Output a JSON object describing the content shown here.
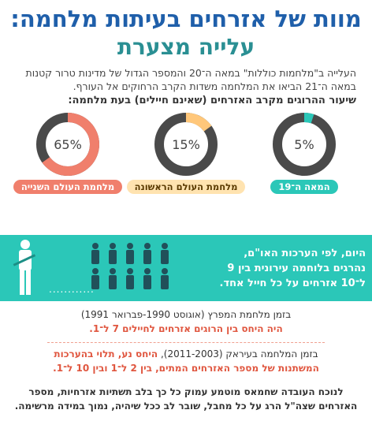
{
  "title": {
    "line1": "מוות של אזרחים בעיתות מלחמה:",
    "line2": "עלייה מצערת"
  },
  "intro": "העלייה ב\"מלחמות כוללות\" במאה ה־20 והמספר הגדול של מדינות טרור קטנות במאה ה־21 הביאו את המלחמה משדות הקרב הרחוקים אל העורף.",
  "section_heading": "שיעור ההרוגים מקרב האזרחים (שאינם חיילים) בעת מלחמה:",
  "chart_data": {
    "type": "pie",
    "categories": [
      "המאה ה־19",
      "מלחמת העולם הראשונה",
      "מלחמת העולם השנייה"
    ],
    "values": [
      5,
      15,
      65
    ],
    "labels": [
      "5%",
      "15%",
      "65%"
    ],
    "colors": [
      "#2bc7b8",
      "#ffc77a",
      "#f07f6c"
    ],
    "track_color": "#4a4a4a"
  },
  "pill_colors": {
    "bg": [
      "#2bc7b8",
      "#ffe3b0",
      "#f07f6c"
    ],
    "fg": [
      "#ffffff",
      "#5a3a00",
      "#ffffff"
    ]
  },
  "banner": {
    "text": "היום, לפי הערכות האו\"ם, נהרגים בלוחמה עירונית בין 9 ל־10 אזרחים על כל חייל אחד.",
    "dots": "............",
    "civilian_figures": 10,
    "soldier_figures": 1
  },
  "gulf": {
    "line1": "בזמן מלחמת המפרץ (אוגוסט 1990-פברואר 1991)",
    "line2": "היה היחס בין הרוגים אזרחים לחיילים 7 ל־1."
  },
  "iraq": {
    "line1_plain": "בזמן המלחמה בעיראק (2011-2003), ",
    "line1_red": "היחס נע, תלוי בהערכות",
    "line2": "המשתנות של מספר האזרחים המתים, בין 2 ל־1 ובין 10 ל־1."
  },
  "footer": "לנוכח העובדה שחמאס מוטמע עמוק כל כך בלב תשתיות אזרחיות, מספר האזרחים שצה\"ל הרג על כל מחבל, שובר לב ככל שיהיה, נמוך במידה מרשימה.",
  "colors": {
    "title_blue": "#1f5faa",
    "title_teal": "#2a8f93",
    "banner": "#2bc7b8",
    "accent_red": "#e0563f"
  }
}
